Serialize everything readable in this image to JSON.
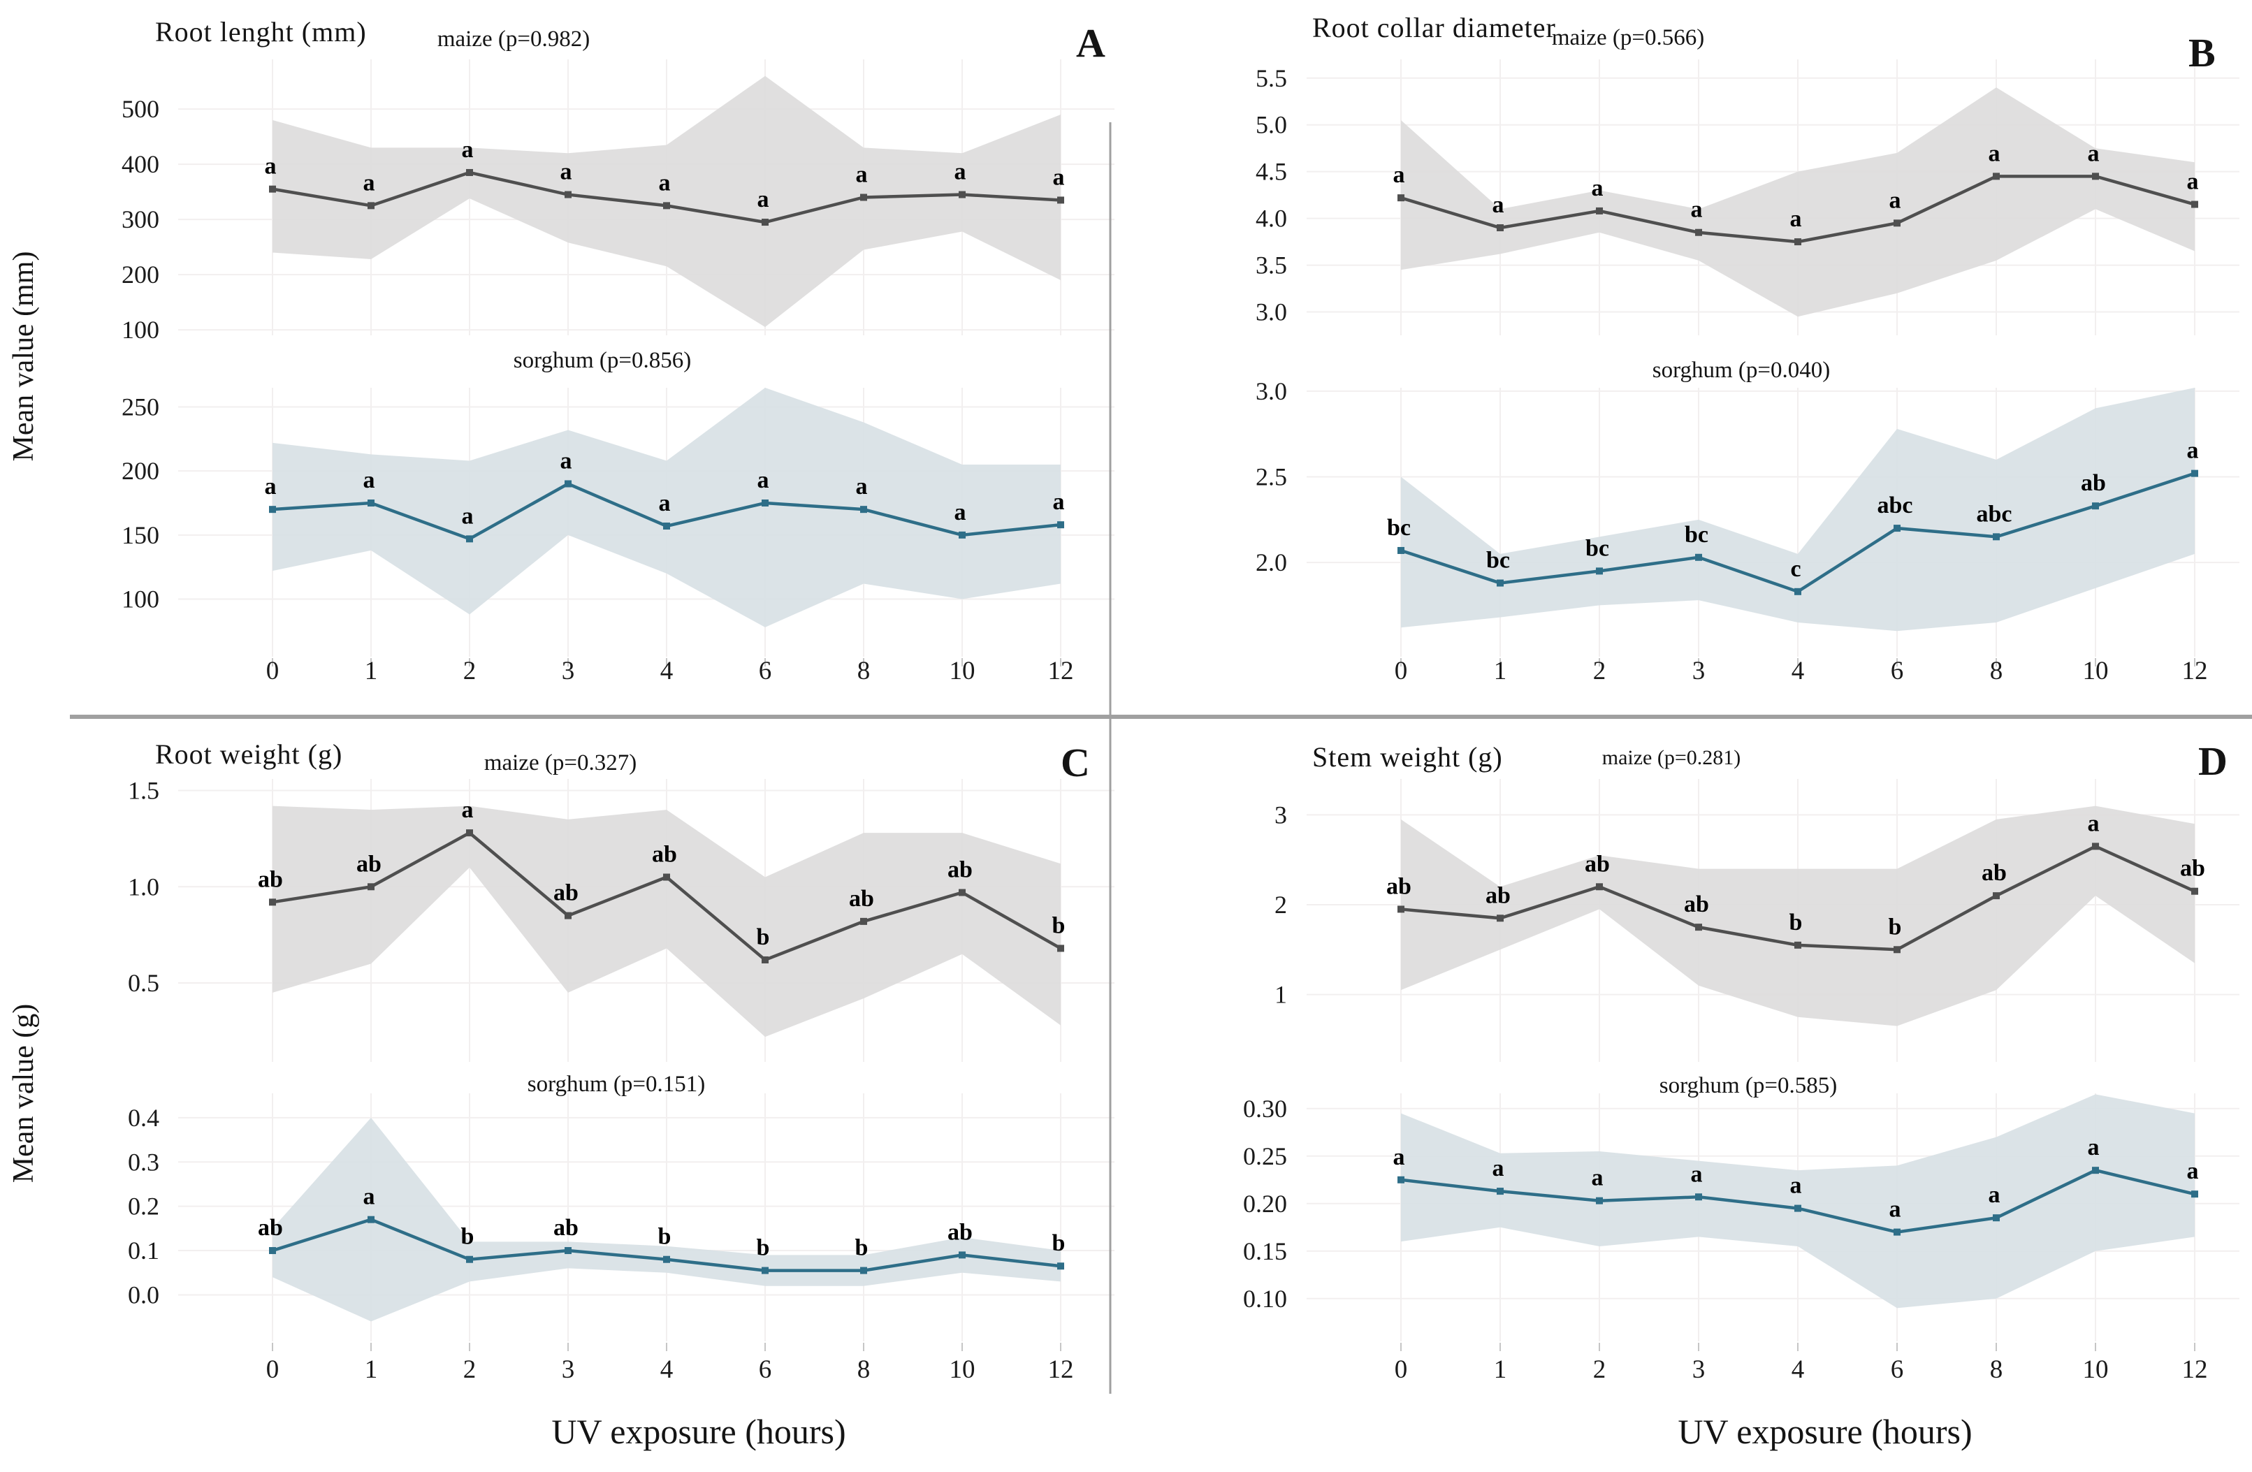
{
  "figure": {
    "axes": {
      "y_label_top": "Mean value (mm)",
      "y_label_bottom": "Mean value (g)",
      "x_label": "UV exposure (hours)"
    },
    "colors": {
      "maize_line": "#4f4f4f",
      "maize_band": "#dddcdc",
      "sorghum_line": "#2e6e88",
      "sorghum_band": "#d7e0e4",
      "grid": "#f2efef",
      "divider": "#a0a0a0"
    }
  },
  "chart_data": [
    {
      "type": "line",
      "panel_letter": "A",
      "title": "Root lenght (mm)",
      "categories": [
        0,
        1,
        2,
        3,
        4,
        6,
        8,
        10,
        12
      ],
      "legend_position": "none",
      "grid": true,
      "series": [
        {
          "name": "maize",
          "label": "maize (p=0.982)",
          "p_value": 0.982,
          "ylim": [
            90,
            590
          ],
          "ytick_labels": [
            "100",
            "200",
            "300",
            "400",
            "500"
          ],
          "means": [
            355,
            325,
            385,
            345,
            325,
            295,
            340,
            345,
            335
          ],
          "upper": [
            480,
            430,
            430,
            420,
            435,
            560,
            430,
            420,
            490
          ],
          "lower": [
            240,
            228,
            338,
            258,
            215,
            105,
            245,
            278,
            190
          ],
          "letters": [
            "a",
            "a",
            "a",
            "a",
            "a",
            "a",
            "a",
            "a",
            "a"
          ]
        },
        {
          "name": "sorghum",
          "label": "sorghum (p=0.856)",
          "p_value": 0.856,
          "ylim": [
            55,
            265
          ],
          "ytick_labels": [
            "100",
            "150",
            "200",
            "250"
          ],
          "means": [
            170,
            175,
            147,
            190,
            157,
            175,
            170,
            150,
            158
          ],
          "upper": [
            222,
            213,
            208,
            232,
            208,
            268,
            238,
            205,
            205
          ],
          "lower": [
            122,
            138,
            88,
            150,
            120,
            78,
            112,
            100,
            112
          ],
          "letters": [
            "a",
            "a",
            "a",
            "a",
            "a",
            "a",
            "a",
            "a",
            "a"
          ]
        }
      ]
    },
    {
      "type": "line",
      "panel_letter": "B",
      "title": "Root collar diameter",
      "categories": [
        0,
        1,
        2,
        3,
        4,
        6,
        8,
        10,
        12
      ],
      "legend_position": "none",
      "grid": true,
      "series": [
        {
          "name": "maize",
          "label": "maize (p=0.566)",
          "p_value": 0.566,
          "ylim": [
            2.75,
            5.7
          ],
          "ytick_labels": [
            "3.0",
            "3.5",
            "4.0",
            "4.5",
            "5.0",
            "5.5"
          ],
          "means": [
            4.22,
            3.9,
            4.08,
            3.85,
            3.75,
            3.95,
            4.45,
            4.45,
            4.15
          ],
          "upper": [
            5.05,
            4.1,
            4.3,
            4.1,
            4.5,
            4.7,
            5.4,
            4.75,
            4.6
          ],
          "lower": [
            3.45,
            3.62,
            3.85,
            3.55,
            2.95,
            3.2,
            3.55,
            4.1,
            3.65
          ],
          "letters": [
            "a",
            "a",
            "a",
            "a",
            "a",
            "a",
            "a",
            "a",
            "a"
          ]
        },
        {
          "name": "sorghum",
          "label": "sorghum (p=0.040)",
          "p_value": 0.04,
          "ylim": [
            1.45,
            3.02
          ],
          "ytick_labels": [
            "2.0",
            "2.5",
            "3.0"
          ],
          "means": [
            2.07,
            1.88,
            1.95,
            2.03,
            1.83,
            2.2,
            2.15,
            2.33,
            2.52
          ],
          "upper": [
            2.5,
            2.05,
            2.15,
            2.25,
            2.05,
            2.78,
            2.6,
            2.9,
            3.02
          ],
          "lower": [
            1.62,
            1.68,
            1.75,
            1.78,
            1.65,
            1.6,
            1.65,
            1.85,
            2.05
          ],
          "letters": [
            "bc",
            "bc",
            "bc",
            "bc",
            "c",
            "abc",
            "abc",
            "ab",
            "a"
          ]
        }
      ]
    },
    {
      "type": "line",
      "panel_letter": "C",
      "title": "Root weight (g)",
      "categories": [
        0,
        1,
        2,
        3,
        4,
        6,
        8,
        10,
        12
      ],
      "legend_position": "none",
      "grid": true,
      "series": [
        {
          "name": "maize",
          "label": "maize (p=0.327)",
          "p_value": 0.327,
          "ylim": [
            0.09,
            1.56
          ],
          "ytick_labels": [
            "0.5",
            "1.0",
            "1.5"
          ],
          "means": [
            0.92,
            1.0,
            1.28,
            0.85,
            1.05,
            0.62,
            0.82,
            0.97,
            0.68
          ],
          "upper": [
            1.42,
            1.4,
            1.42,
            1.35,
            1.4,
            1.05,
            1.28,
            1.28,
            1.12
          ],
          "lower": [
            0.45,
            0.6,
            1.1,
            0.45,
            0.68,
            0.22,
            0.42,
            0.65,
            0.28
          ],
          "letters": [
            "ab",
            "ab",
            "a",
            "ab",
            "ab",
            "b",
            "ab",
            "ab",
            "b"
          ]
        },
        {
          "name": "sorghum",
          "label": "sorghum (p=0.151)",
          "p_value": 0.151,
          "ylim": [
            -0.105,
            0.455
          ],
          "ytick_labels": [
            "0.0",
            "0.1",
            "0.2",
            "0.3",
            "0.4"
          ],
          "means": [
            0.1,
            0.17,
            0.08,
            0.1,
            0.08,
            0.055,
            0.055,
            0.09,
            0.065
          ],
          "upper": [
            0.15,
            0.4,
            0.12,
            0.12,
            0.11,
            0.09,
            0.09,
            0.13,
            0.1
          ],
          "lower": [
            0.04,
            -0.06,
            0.03,
            0.06,
            0.05,
            0.02,
            0.02,
            0.05,
            0.03
          ],
          "letters": [
            "ab",
            "a",
            "b",
            "ab",
            "b",
            "b",
            "b",
            "ab",
            "b"
          ]
        }
      ]
    },
    {
      "type": "line",
      "panel_letter": "D",
      "title": "Stem weight (g)",
      "categories": [
        0,
        1,
        2,
        3,
        4,
        6,
        8,
        10,
        12
      ],
      "legend_position": "none",
      "grid": true,
      "series": [
        {
          "name": "maize",
          "label": "maize (p=0.281)",
          "p_value": 0.281,
          "ylim": [
            0.25,
            3.4
          ],
          "ytick_labels": [
            "1",
            "2",
            "3"
          ],
          "means": [
            1.95,
            1.85,
            2.2,
            1.75,
            1.55,
            1.5,
            2.1,
            2.65,
            2.15
          ],
          "upper": [
            2.95,
            2.2,
            2.55,
            2.4,
            2.4,
            2.4,
            2.95,
            3.1,
            2.9
          ],
          "lower": [
            1.05,
            1.5,
            1.95,
            1.1,
            0.75,
            0.65,
            1.05,
            2.1,
            1.35
          ],
          "letters": [
            "ab",
            "ab",
            "ab",
            "ab",
            "b",
            "b",
            "ab",
            "a",
            "ab"
          ]
        },
        {
          "name": "sorghum",
          "label": "sorghum (p=0.585)",
          "p_value": 0.585,
          "ylim": [
            0.055,
            0.316
          ],
          "ytick_labels": [
            "0.10",
            "0.15",
            "0.20",
            "0.25",
            "0.30"
          ],
          "means": [
            0.225,
            0.213,
            0.203,
            0.207,
            0.195,
            0.17,
            0.185,
            0.235,
            0.21
          ],
          "upper": [
            0.295,
            0.253,
            0.255,
            0.245,
            0.235,
            0.24,
            0.27,
            0.315,
            0.295
          ],
          "lower": [
            0.16,
            0.175,
            0.155,
            0.165,
            0.155,
            0.09,
            0.1,
            0.15,
            0.165
          ],
          "letters": [
            "a",
            "a",
            "a",
            "a",
            "a",
            "a",
            "a",
            "a",
            "a"
          ]
        }
      ]
    }
  ]
}
